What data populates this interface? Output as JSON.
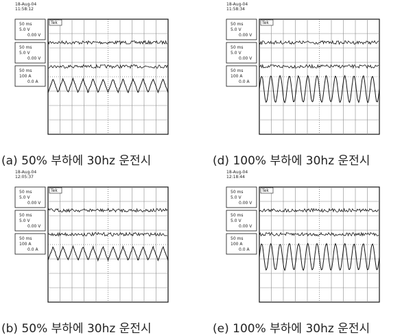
{
  "brand": "Tek",
  "panels": [
    {
      "date": "18-Aug-04",
      "time": "11:58:12",
      "caption": "(a) 50% 부하에 30hz 운전시",
      "channels": [
        [
          "50 ms",
          "5.0 V",
          "0.00 V"
        ],
        [
          "50 ms",
          "5.0 V",
          "0.00 V"
        ],
        [
          "50 ms",
          "100 A",
          "0.0 A"
        ]
      ]
    },
    {
      "date": "18-Aug-04",
      "time": "11:58:34",
      "caption": "(d) 100% 부하에 30hz 운전시",
      "channels": [
        [
          "50 ms",
          "5.0 V",
          "0.00 V"
        ],
        [
          "50 ms",
          "5.0 V",
          "0.00 V"
        ],
        [
          "50 ms",
          "100 A",
          "0.0 A"
        ]
      ]
    },
    {
      "date": "18-Aug-04",
      "time": "12:05:37",
      "caption": "(b) 50% 부하에 30hz 운전시",
      "channels": [
        [
          "50 ms",
          "5.0 V",
          "0.00 V"
        ],
        [
          "50 ms",
          "5.0 V",
          "0.00 V"
        ],
        [
          "50 ms",
          "100 A",
          "0.0 A"
        ]
      ]
    },
    {
      "date": "18-Aug-04",
      "time": "12:18:44",
      "caption": "(e) 100% 부하에 30hz 운전시",
      "channels": [
        [
          "50 ms",
          "5.0 V",
          "0.00 V"
        ],
        [
          "50 ms",
          "5.0 V",
          "0.00 V"
        ],
        [
          "50 ms",
          "100 A",
          "0.0 A"
        ]
      ]
    }
  ]
}
